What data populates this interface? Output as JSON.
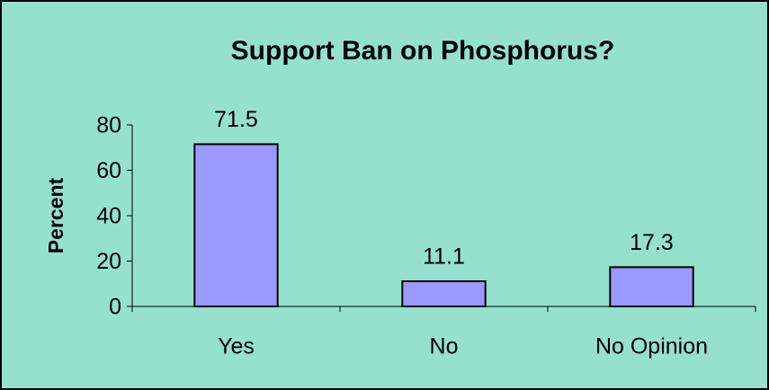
{
  "chart_data": {
    "type": "bar",
    "title": "Support Ban on Phosphorus?",
    "y_label": "Percent",
    "categories": [
      "Yes",
      "No",
      "No Opinion"
    ],
    "values": [
      71.5,
      11.1,
      17.3
    ],
    "color": "#9999ff",
    "ylim": [
      0,
      80
    ],
    "yticks": [
      0,
      20,
      40,
      60,
      80
    ],
    "grid": false,
    "show_value_labels": true
  }
}
